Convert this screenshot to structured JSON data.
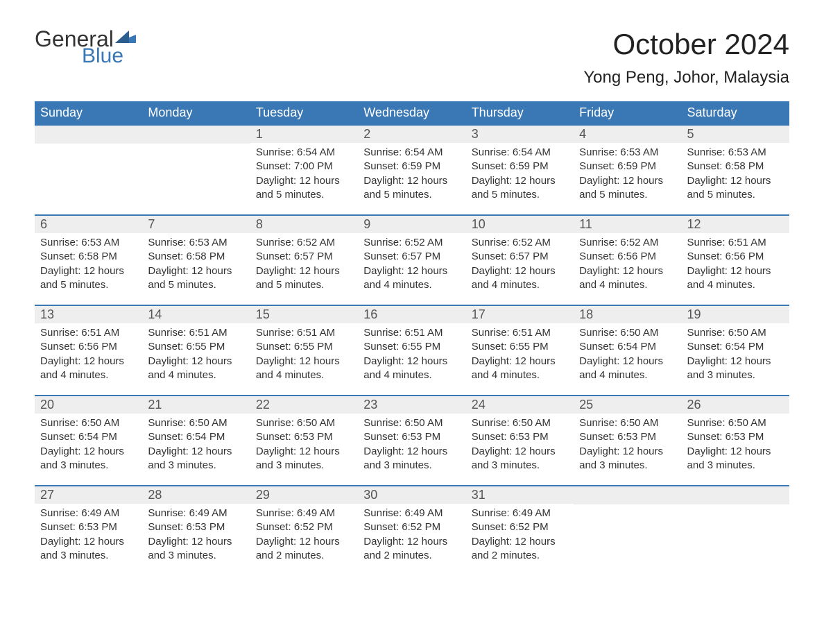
{
  "logo": {
    "general": "General",
    "blue": "Blue"
  },
  "title": "October 2024",
  "location": "Yong Peng, Johor, Malaysia",
  "colors": {
    "header_bg": "#3a78b5",
    "header_text": "#ffffff",
    "day_number_bg": "#eeeeee",
    "day_number_text": "#555555",
    "body_text": "#333333",
    "week_border": "#3a78b5",
    "logo_accent": "#3a78b5"
  },
  "layout": {
    "columns": 7,
    "rows": 5,
    "first_day_column": 2,
    "last_day": 31
  },
  "weekdays": [
    "Sunday",
    "Monday",
    "Tuesday",
    "Wednesday",
    "Thursday",
    "Friday",
    "Saturday"
  ],
  "labels": {
    "sunrise": "Sunrise: ",
    "sunset": "Sunset: ",
    "daylight": "Daylight: "
  },
  "days": [
    {
      "n": 1,
      "sunrise": "6:54 AM",
      "sunset": "7:00 PM",
      "daylight": "12 hours and 5 minutes."
    },
    {
      "n": 2,
      "sunrise": "6:54 AM",
      "sunset": "6:59 PM",
      "daylight": "12 hours and 5 minutes."
    },
    {
      "n": 3,
      "sunrise": "6:54 AM",
      "sunset": "6:59 PM",
      "daylight": "12 hours and 5 minutes."
    },
    {
      "n": 4,
      "sunrise": "6:53 AM",
      "sunset": "6:59 PM",
      "daylight": "12 hours and 5 minutes."
    },
    {
      "n": 5,
      "sunrise": "6:53 AM",
      "sunset": "6:58 PM",
      "daylight": "12 hours and 5 minutes."
    },
    {
      "n": 6,
      "sunrise": "6:53 AM",
      "sunset": "6:58 PM",
      "daylight": "12 hours and 5 minutes."
    },
    {
      "n": 7,
      "sunrise": "6:53 AM",
      "sunset": "6:58 PM",
      "daylight": "12 hours and 5 minutes."
    },
    {
      "n": 8,
      "sunrise": "6:52 AM",
      "sunset": "6:57 PM",
      "daylight": "12 hours and 5 minutes."
    },
    {
      "n": 9,
      "sunrise": "6:52 AM",
      "sunset": "6:57 PM",
      "daylight": "12 hours and 4 minutes."
    },
    {
      "n": 10,
      "sunrise": "6:52 AM",
      "sunset": "6:57 PM",
      "daylight": "12 hours and 4 minutes."
    },
    {
      "n": 11,
      "sunrise": "6:52 AM",
      "sunset": "6:56 PM",
      "daylight": "12 hours and 4 minutes."
    },
    {
      "n": 12,
      "sunrise": "6:51 AM",
      "sunset": "6:56 PM",
      "daylight": "12 hours and 4 minutes."
    },
    {
      "n": 13,
      "sunrise": "6:51 AM",
      "sunset": "6:56 PM",
      "daylight": "12 hours and 4 minutes."
    },
    {
      "n": 14,
      "sunrise": "6:51 AM",
      "sunset": "6:55 PM",
      "daylight": "12 hours and 4 minutes."
    },
    {
      "n": 15,
      "sunrise": "6:51 AM",
      "sunset": "6:55 PM",
      "daylight": "12 hours and 4 minutes."
    },
    {
      "n": 16,
      "sunrise": "6:51 AM",
      "sunset": "6:55 PM",
      "daylight": "12 hours and 4 minutes."
    },
    {
      "n": 17,
      "sunrise": "6:51 AM",
      "sunset": "6:55 PM",
      "daylight": "12 hours and 4 minutes."
    },
    {
      "n": 18,
      "sunrise": "6:50 AM",
      "sunset": "6:54 PM",
      "daylight": "12 hours and 4 minutes."
    },
    {
      "n": 19,
      "sunrise": "6:50 AM",
      "sunset": "6:54 PM",
      "daylight": "12 hours and 3 minutes."
    },
    {
      "n": 20,
      "sunrise": "6:50 AM",
      "sunset": "6:54 PM",
      "daylight": "12 hours and 3 minutes."
    },
    {
      "n": 21,
      "sunrise": "6:50 AM",
      "sunset": "6:54 PM",
      "daylight": "12 hours and 3 minutes."
    },
    {
      "n": 22,
      "sunrise": "6:50 AM",
      "sunset": "6:53 PM",
      "daylight": "12 hours and 3 minutes."
    },
    {
      "n": 23,
      "sunrise": "6:50 AM",
      "sunset": "6:53 PM",
      "daylight": "12 hours and 3 minutes."
    },
    {
      "n": 24,
      "sunrise": "6:50 AM",
      "sunset": "6:53 PM",
      "daylight": "12 hours and 3 minutes."
    },
    {
      "n": 25,
      "sunrise": "6:50 AM",
      "sunset": "6:53 PM",
      "daylight": "12 hours and 3 minutes."
    },
    {
      "n": 26,
      "sunrise": "6:50 AM",
      "sunset": "6:53 PM",
      "daylight": "12 hours and 3 minutes."
    },
    {
      "n": 27,
      "sunrise": "6:49 AM",
      "sunset": "6:53 PM",
      "daylight": "12 hours and 3 minutes."
    },
    {
      "n": 28,
      "sunrise": "6:49 AM",
      "sunset": "6:53 PM",
      "daylight": "12 hours and 3 minutes."
    },
    {
      "n": 29,
      "sunrise": "6:49 AM",
      "sunset": "6:52 PM",
      "daylight": "12 hours and 2 minutes."
    },
    {
      "n": 30,
      "sunrise": "6:49 AM",
      "sunset": "6:52 PM",
      "daylight": "12 hours and 2 minutes."
    },
    {
      "n": 31,
      "sunrise": "6:49 AM",
      "sunset": "6:52 PM",
      "daylight": "12 hours and 2 minutes."
    }
  ]
}
